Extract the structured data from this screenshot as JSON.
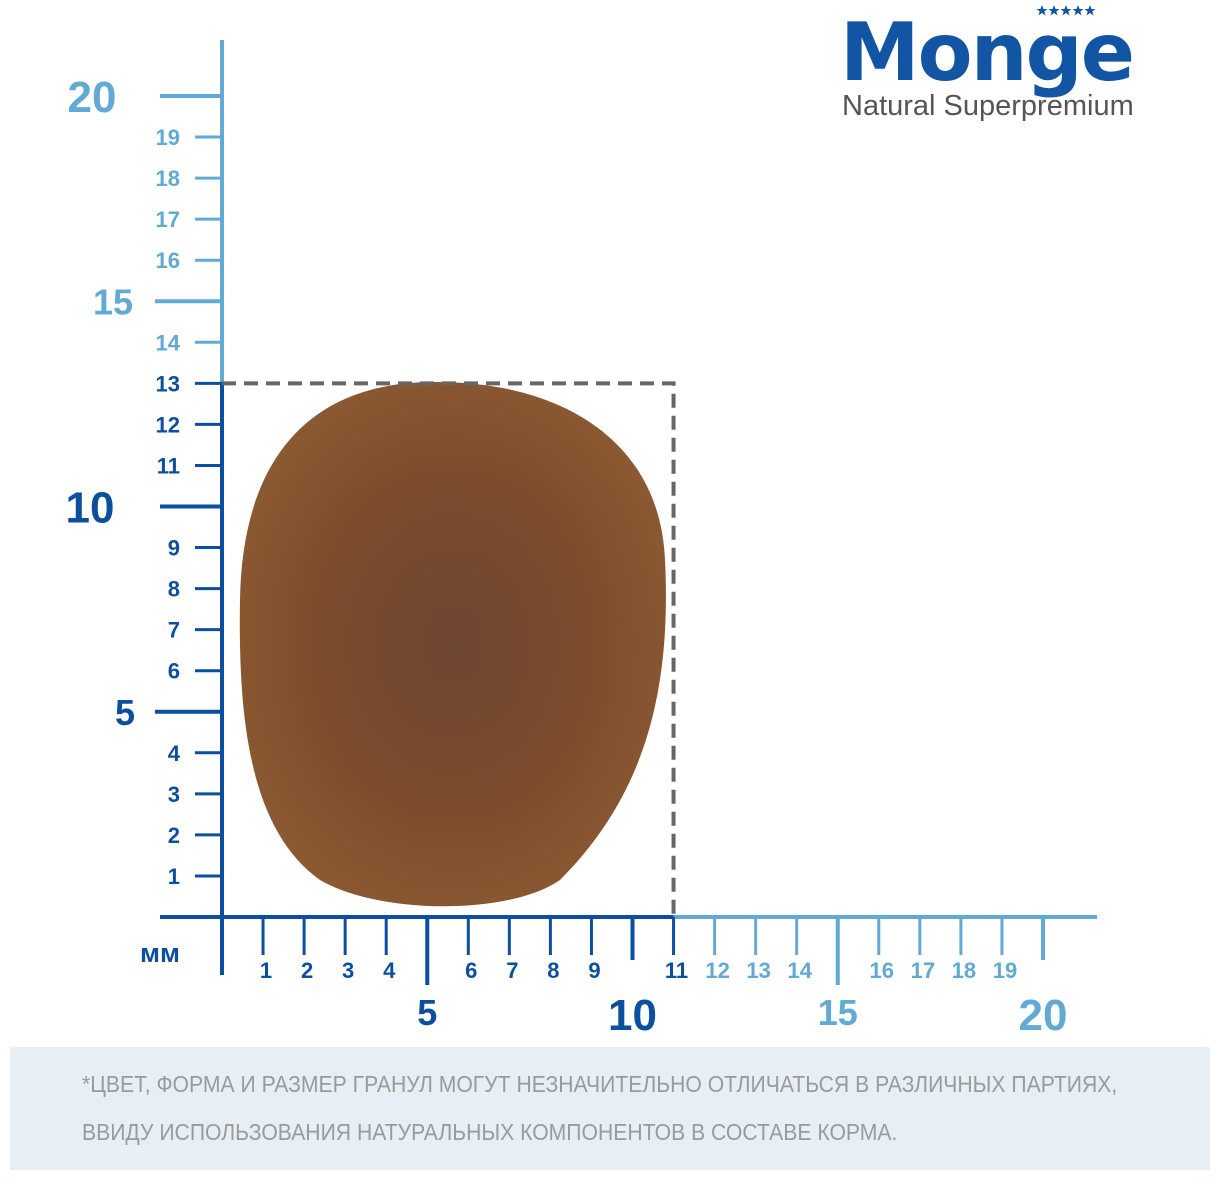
{
  "brand": {
    "name": "Monge",
    "tagline": "Natural Superpremium"
  },
  "unit_label": "мм",
  "colors": {
    "dark_blue": "#0b4f9e",
    "light_blue": "#62a9d4",
    "dashed_box": "#666666",
    "kibble": "#7a4a2c"
  },
  "x_axis": {
    "minor_labels": [
      "1",
      "2",
      "3",
      "4",
      "6",
      "7",
      "8",
      "9",
      "11",
      "12",
      "13",
      "14",
      "16",
      "17",
      "18",
      "19"
    ],
    "major_labels": [
      "5",
      "10",
      "15",
      "20"
    ],
    "range_mm": [
      0,
      20
    ]
  },
  "y_axis": {
    "minor_labels": [
      "1",
      "2",
      "3",
      "4",
      "6",
      "7",
      "8",
      "9",
      "11",
      "12",
      "13",
      "14",
      "16",
      "17",
      "18",
      "19"
    ],
    "major_labels": [
      "5",
      "10",
      "15",
      "20"
    ],
    "range_mm": [
      0,
      20
    ]
  },
  "kibble_size_mm": {
    "width": 11,
    "height": 13
  },
  "disclaimer": {
    "line1": "*ЦВЕТ, ФОРМА И РАЗМЕР ГРАНУЛ МОГУТ НЕЗНАЧИТЕЛЬНО ОТЛИЧАТЬСЯ В РАЗЛИЧНЫХ ПАРТИЯХ,",
    "line2": "ВВИДУ ИСПОЛЬЗОВАНИЯ НАТУРАЛЬНЫХ КОМПОНЕНТОВ В СОСТАВЕ КОРМА."
  }
}
